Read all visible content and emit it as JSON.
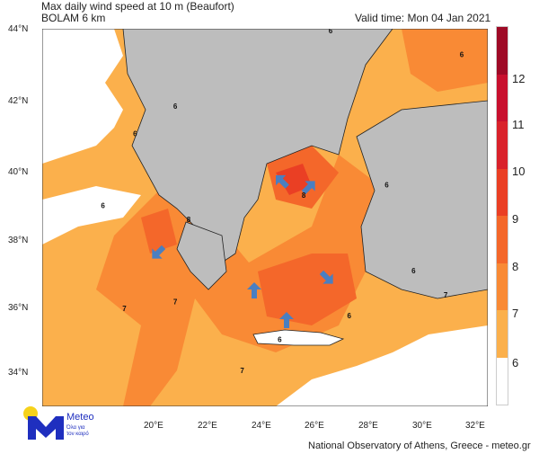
{
  "header": {
    "title": "Max daily wind speed at 10 m (Beaufort)",
    "model": "BOLAM 6 km",
    "valid_time": "Valid time: Mon 04 Jan 2021"
  },
  "map": {
    "variable": "Max daily wind speed at 10 m",
    "units": "Beaufort",
    "lat_ticks": [
      "44°N",
      "42°N",
      "40°N",
      "38°N",
      "36°N",
      "34°N"
    ],
    "lon_ticks": [
      "20°E",
      "22°E",
      "24°E",
      "26°E",
      "28°E",
      "30°E",
      "32°E"
    ],
    "land_color": "#bdbdbd",
    "contour_labels": [
      {
        "v": "6",
        "lon": 26.5,
        "lat": 43.9
      },
      {
        "v": "6",
        "lon": 31.4,
        "lat": 43.2
      },
      {
        "v": "6",
        "lon": 20.7,
        "lat": 41.7
      },
      {
        "v": "6",
        "lon": 19.2,
        "lat": 40.9
      },
      {
        "v": "8",
        "lon": 21.2,
        "lat": 38.4
      },
      {
        "v": "7",
        "lon": 20.7,
        "lat": 36.0
      },
      {
        "v": "7",
        "lon": 23.2,
        "lat": 34.0
      },
      {
        "v": "6",
        "lon": 27.2,
        "lat": 35.6
      },
      {
        "v": "7",
        "lon": 30.8,
        "lat": 36.2
      },
      {
        "v": "6",
        "lon": 18.0,
        "lat": 38.8
      },
      {
        "v": "7",
        "lon": 18.8,
        "lat": 35.8
      },
      {
        "v": "6",
        "lon": 24.6,
        "lat": 34.9
      },
      {
        "v": "8",
        "lon": 25.5,
        "lat": 39.1
      },
      {
        "v": "6",
        "lon": 28.6,
        "lat": 39.4
      },
      {
        "v": "6",
        "lon": 29.6,
        "lat": 36.9
      }
    ],
    "wind_arrows": 6
  },
  "colorbar": {
    "levels": [
      "6",
      "7",
      "8",
      "9",
      "10",
      "11",
      "12"
    ],
    "colors": [
      "#ffffff",
      "#fbb04c",
      "#f98a35",
      "#f4672a",
      "#ea3f24",
      "#d9222b",
      "#c8102e",
      "#9e0a26"
    ]
  },
  "logo": {
    "name": "Meteo",
    "tagline_1": "Όλα για",
    "tagline_2": "τον καιρό",
    "accent": "#1f2fbf",
    "dot": "#f6d21b"
  },
  "footer": {
    "credit": "National Observatory of Athens, Greece - meteo.gr"
  }
}
